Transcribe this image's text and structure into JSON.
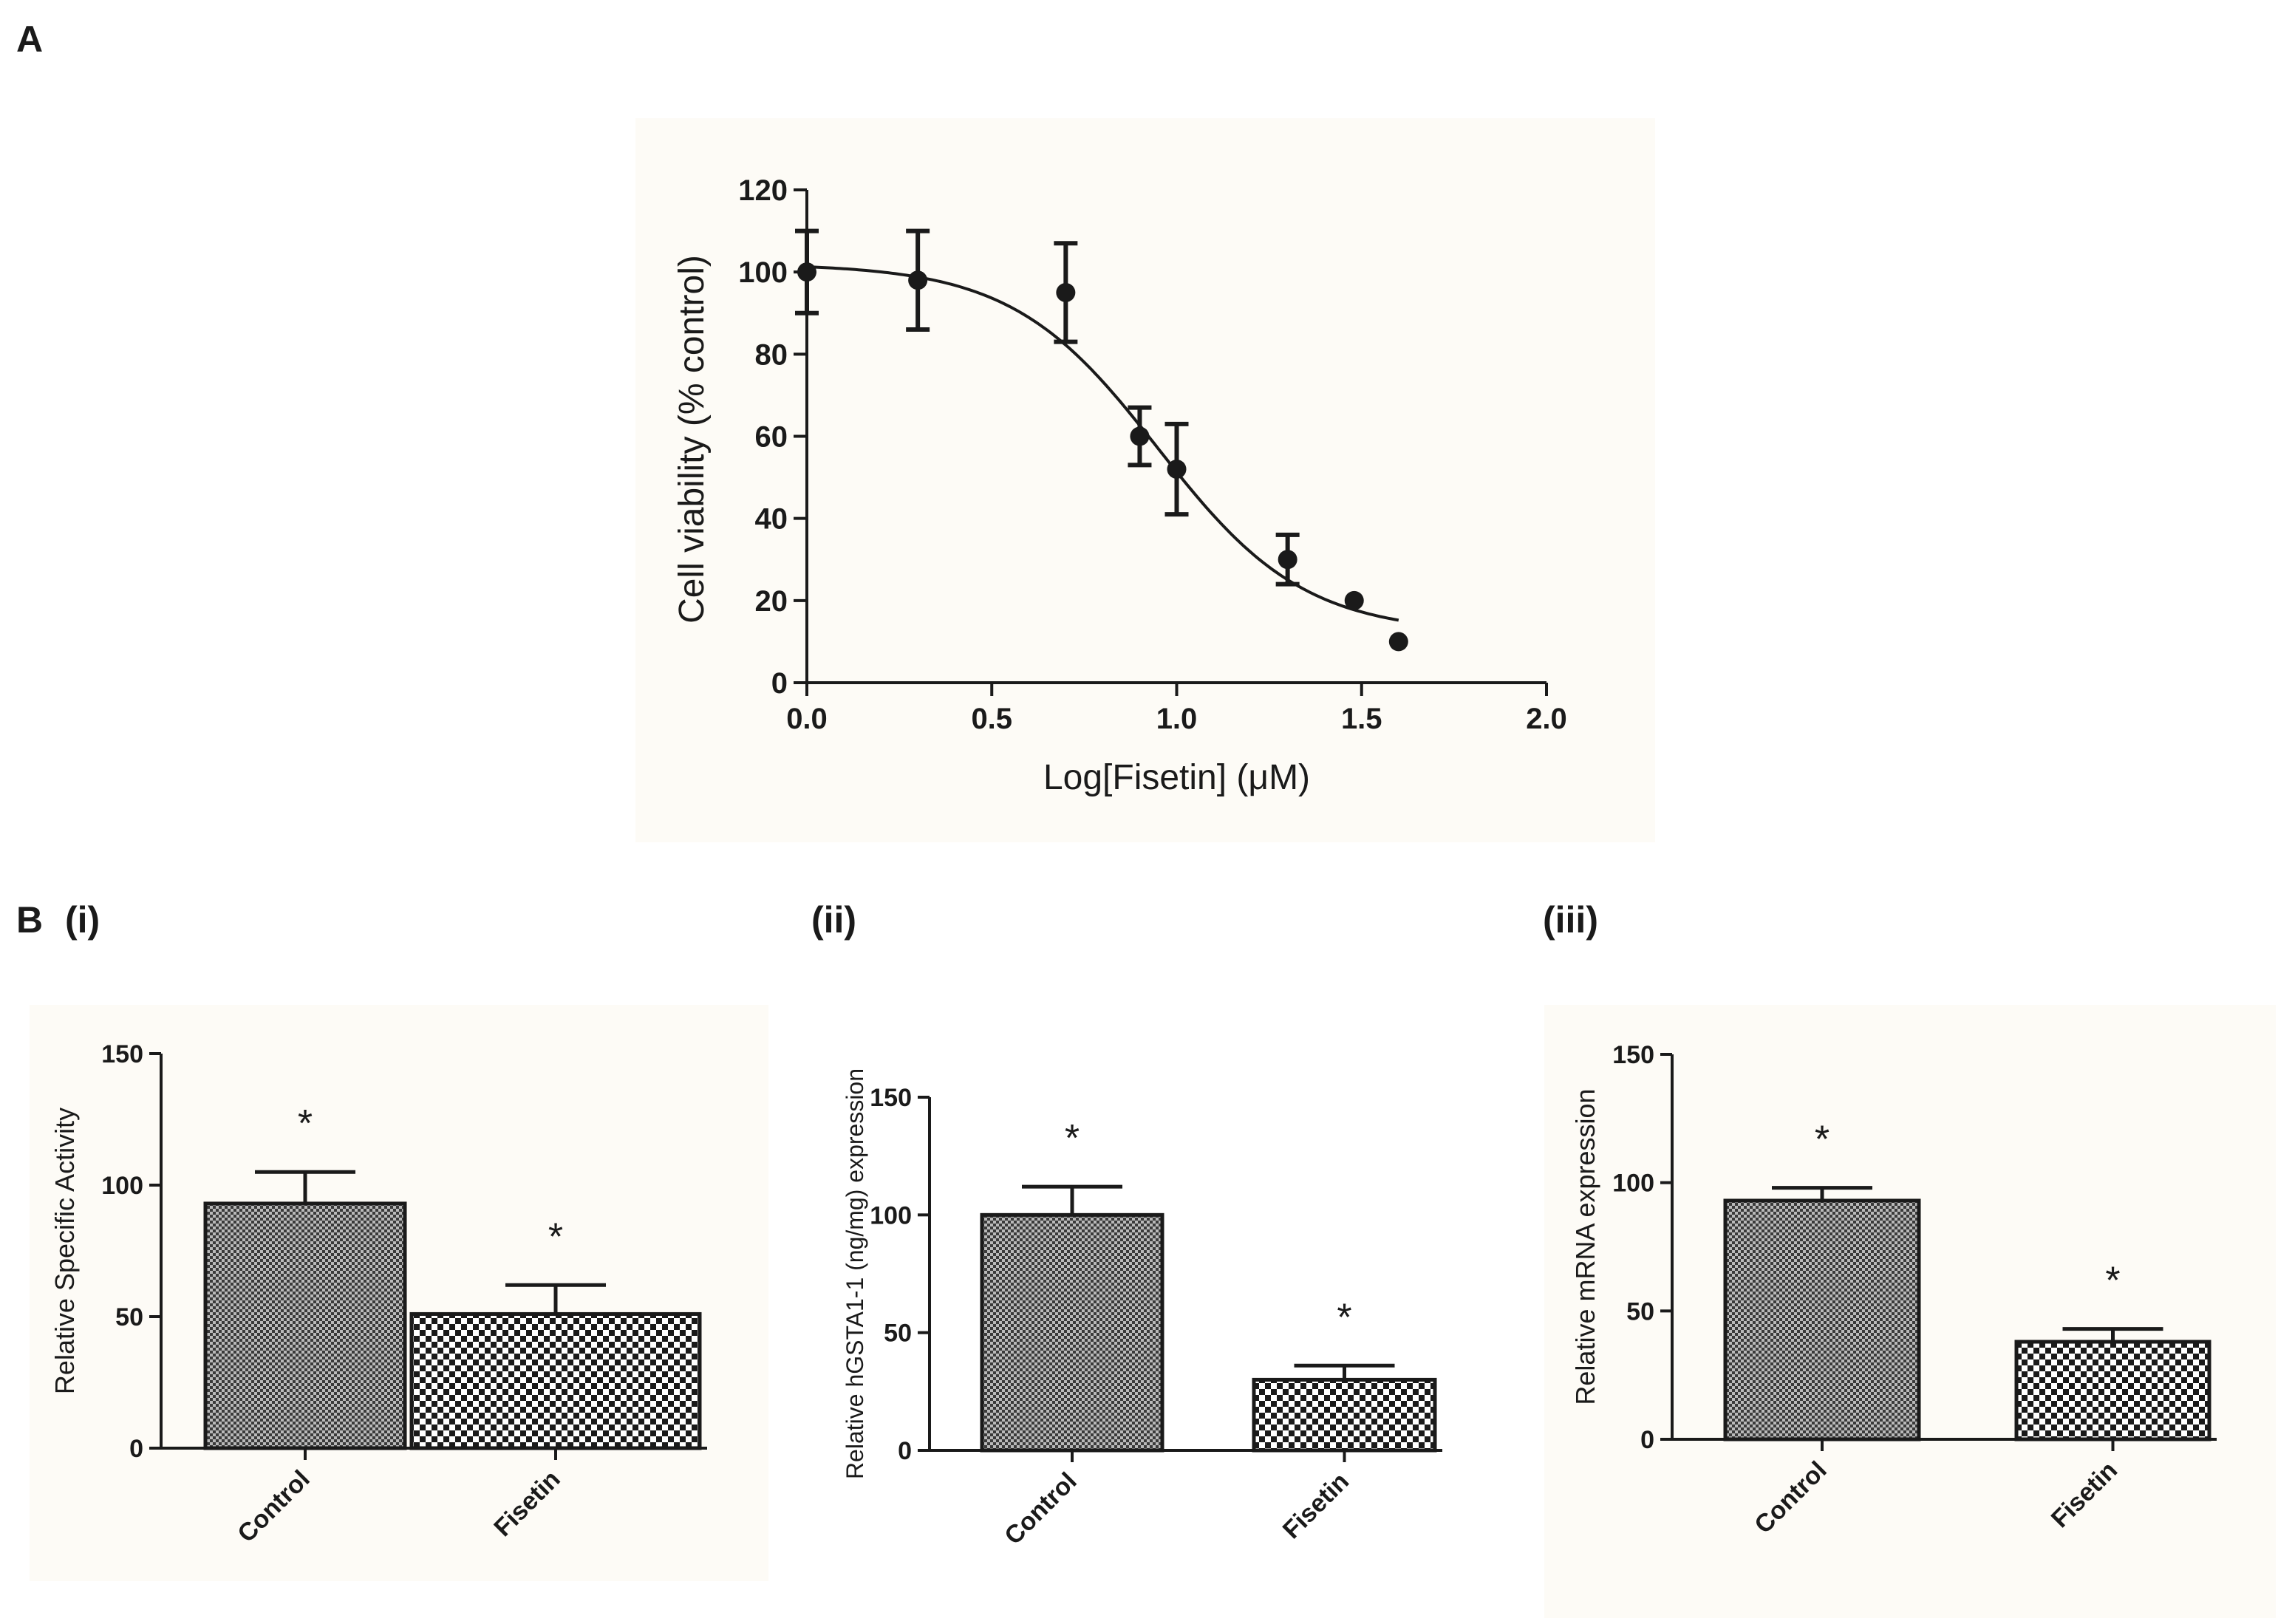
{
  "panel_labels": {
    "a": "A",
    "b": "B",
    "b_i": "(i)",
    "b_ii": "(ii)",
    "b_iii": "(iii)"
  },
  "colors": {
    "ink": "#1a1a1a",
    "panel_bg": "#fdfbf6",
    "page_bg": "#ffffff"
  },
  "chart_data": [
    {
      "id": "A",
      "type": "scatter",
      "title": "",
      "xlabel": "Log[Fisetin] (μM)",
      "ylabel": "Cell viability (% control)",
      "xlim": [
        0,
        2.0
      ],
      "ylim": [
        0,
        120
      ],
      "xticks": [
        0.0,
        0.5,
        1.0,
        1.5,
        2.0
      ],
      "xtick_labels": [
        "0.0",
        "0.5",
        "1.0",
        "1.5",
        "2.0"
      ],
      "yticks": [
        0,
        20,
        40,
        60,
        80,
        100,
        120
      ],
      "ytick_labels": [
        "0",
        "20",
        "40",
        "60",
        "80",
        "100",
        "120"
      ],
      "points": [
        {
          "x": 0.0,
          "y": 100,
          "err": 10
        },
        {
          "x": 0.3,
          "y": 98,
          "err": 12
        },
        {
          "x": 0.7,
          "y": 95,
          "err": 12
        },
        {
          "x": 0.9,
          "y": 60,
          "err": 7
        },
        {
          "x": 1.0,
          "y": 52,
          "err": 11
        },
        {
          "x": 1.3,
          "y": 30,
          "err": 6
        },
        {
          "x": 1.48,
          "y": 20,
          "err": 0
        },
        {
          "x": 1.6,
          "y": 10,
          "err": 0
        }
      ],
      "fit": {
        "model": "four-parameter logistic",
        "top": 102,
        "bottom": 12,
        "log_ic50": 0.95,
        "hill": 2.2,
        "x_range": [
          0,
          1.6
        ]
      }
    },
    {
      "id": "B(i)",
      "type": "bar",
      "ylabel": "Relative Specific Activity",
      "categories": [
        "Control",
        "Fisetin"
      ],
      "values": [
        93,
        51
      ],
      "errors": [
        12,
        11
      ],
      "annotations": [
        "*",
        "*"
      ],
      "ylim": [
        0,
        150
      ],
      "yticks": [
        0,
        50,
        100,
        150
      ],
      "ytick_labels": [
        "0",
        "50",
        "100",
        "150"
      ]
    },
    {
      "id": "B(ii)",
      "type": "bar",
      "ylabel": "Relative hGSTA1-1 (ng/mg) expression",
      "categories": [
        "Control",
        "Fisetin"
      ],
      "values": [
        100,
        30
      ],
      "errors": [
        12,
        6
      ],
      "annotations": [
        "*",
        "*"
      ],
      "ylim": [
        0,
        150
      ],
      "yticks": [
        0,
        50,
        100,
        150
      ],
      "ytick_labels": [
        "0",
        "50",
        "100",
        "150"
      ]
    },
    {
      "id": "B(iii)",
      "type": "bar",
      "ylabel": "Relative mRNA expression",
      "categories": [
        "Control",
        "Fisetin"
      ],
      "values": [
        93,
        38
      ],
      "errors": [
        5,
        5
      ],
      "annotations": [
        "*",
        "*"
      ],
      "ylim": [
        0,
        150
      ],
      "yticks": [
        0,
        50,
        100,
        150
      ],
      "ytick_labels": [
        "0",
        "50",
        "100",
        "150"
      ]
    }
  ]
}
